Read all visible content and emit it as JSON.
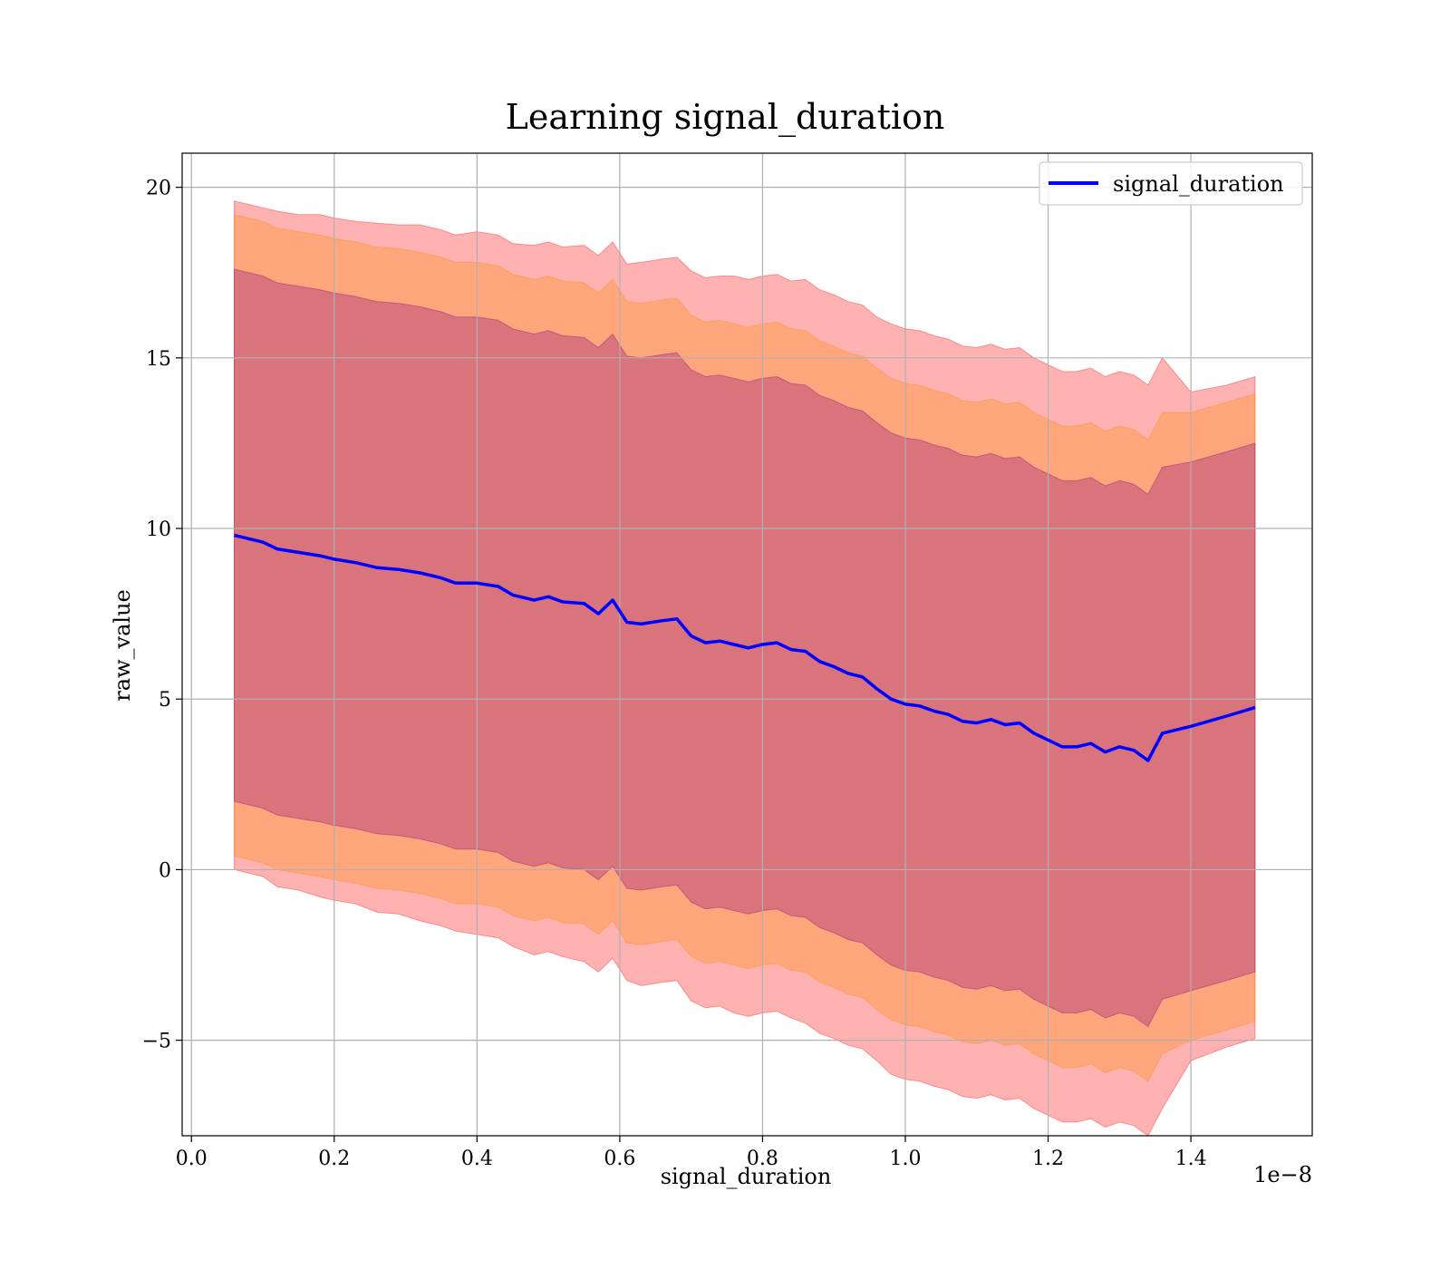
{
  "chart_data": {
    "type": "line",
    "title": "Learning signal_duration",
    "xlabel": "signal_duration",
    "ylabel": "raw_value",
    "x_offset_label": "1e−8",
    "xlim": [
      -0.013,
      1.57
    ],
    "ylim": [
      -7.8,
      21.0
    ],
    "x_ticks": [
      0.0,
      0.2,
      0.4,
      0.6,
      0.8,
      1.0,
      1.2,
      1.4
    ],
    "x_tick_labels": [
      "0.0",
      "0.2",
      "0.4",
      "0.6",
      "0.8",
      "1.0",
      "1.2",
      "1.4"
    ],
    "y_ticks": [
      -5,
      0,
      5,
      10,
      15,
      20
    ],
    "y_tick_labels": [
      "−5",
      "0",
      "5",
      "10",
      "15",
      "20"
    ],
    "grid": true,
    "legend_position": "top-right",
    "colors": {
      "line": "#0000ff",
      "band_outer": "#ff0000",
      "band_middle": "#ff8c00",
      "band_inner": "#800080",
      "grid": "#b0b0b0"
    },
    "series": [
      {
        "name": "signal_duration",
        "role": "line",
        "x": [
          0.06,
          0.08,
          0.1,
          0.12,
          0.15,
          0.18,
          0.2,
          0.23,
          0.26,
          0.29,
          0.32,
          0.35,
          0.37,
          0.4,
          0.43,
          0.45,
          0.48,
          0.5,
          0.52,
          0.55,
          0.57,
          0.59,
          0.61,
          0.63,
          0.66,
          0.68,
          0.7,
          0.72,
          0.74,
          0.76,
          0.78,
          0.8,
          0.82,
          0.84,
          0.86,
          0.88,
          0.9,
          0.92,
          0.94,
          0.96,
          0.98,
          1.0,
          1.02,
          1.04,
          1.06,
          1.08,
          1.1,
          1.12,
          1.14,
          1.16,
          1.18,
          1.2,
          1.22,
          1.24,
          1.26,
          1.28,
          1.3,
          1.32,
          1.34,
          1.36,
          1.4,
          1.45,
          1.49
        ],
        "y": [
          9.8,
          9.7,
          9.6,
          9.4,
          9.3,
          9.2,
          9.1,
          9.0,
          8.85,
          8.8,
          8.7,
          8.55,
          8.4,
          8.4,
          8.3,
          8.05,
          7.9,
          8.0,
          7.85,
          7.8,
          7.5,
          7.9,
          7.25,
          7.2,
          7.3,
          7.35,
          6.85,
          6.65,
          6.7,
          6.6,
          6.5,
          6.6,
          6.65,
          6.45,
          6.4,
          6.1,
          5.95,
          5.75,
          5.65,
          5.3,
          5.0,
          4.85,
          4.8,
          4.65,
          4.55,
          4.35,
          4.3,
          4.4,
          4.25,
          4.3,
          4.0,
          3.8,
          3.6,
          3.6,
          3.7,
          3.45,
          3.6,
          3.5,
          3.2,
          4.0,
          4.2,
          4.5,
          4.75
        ]
      },
      {
        "role": "band",
        "std_multiple": 3,
        "half_width": [
          9.8,
          9.8,
          9.8,
          9.9,
          9.9,
          10.0,
          10.0,
          10.0,
          10.1,
          10.1,
          10.2,
          10.2,
          10.2,
          10.3,
          10.3,
          10.3,
          10.4,
          10.4,
          10.4,
          10.5,
          10.5,
          10.5,
          10.5,
          10.6,
          10.6,
          10.6,
          10.7,
          10.7,
          10.7,
          10.8,
          10.8,
          10.8,
          10.8,
          10.8,
          10.9,
          10.9,
          10.9,
          10.9,
          10.9,
          10.9,
          11.0,
          11.0,
          11.0,
          11.0,
          11.0,
          11.0,
          11.0,
          11.0,
          11.0,
          11.0,
          11.0,
          11.0,
          11.0,
          11.0,
          11.0,
          11.0,
          11.0,
          11.0,
          11.0,
          11.0,
          9.8,
          9.7,
          9.7
        ]
      },
      {
        "role": "band",
        "std_multiple": 2,
        "half_width": [
          9.4,
          9.4,
          9.4,
          9.4,
          9.4,
          9.4,
          9.4,
          9.4,
          9.4,
          9.4,
          9.4,
          9.4,
          9.4,
          9.4,
          9.4,
          9.4,
          9.4,
          9.4,
          9.4,
          9.4,
          9.4,
          9.4,
          9.4,
          9.4,
          9.4,
          9.4,
          9.4,
          9.4,
          9.4,
          9.4,
          9.4,
          9.4,
          9.4,
          9.4,
          9.4,
          9.4,
          9.4,
          9.4,
          9.4,
          9.4,
          9.4,
          9.4,
          9.4,
          9.4,
          9.4,
          9.4,
          9.4,
          9.4,
          9.4,
          9.4,
          9.4,
          9.4,
          9.4,
          9.4,
          9.4,
          9.4,
          9.4,
          9.4,
          9.4,
          9.4,
          9.2,
          9.2,
          9.2
        ]
      },
      {
        "role": "band",
        "std_multiple": 1,
        "half_width": [
          7.8,
          7.8,
          7.8,
          7.8,
          7.8,
          7.8,
          7.8,
          7.8,
          7.8,
          7.8,
          7.8,
          7.8,
          7.8,
          7.8,
          7.8,
          7.8,
          7.8,
          7.8,
          7.8,
          7.8,
          7.8,
          7.8,
          7.8,
          7.8,
          7.8,
          7.8,
          7.8,
          7.8,
          7.8,
          7.8,
          7.8,
          7.8,
          7.8,
          7.8,
          7.8,
          7.8,
          7.8,
          7.8,
          7.8,
          7.8,
          7.8,
          7.8,
          7.8,
          7.8,
          7.8,
          7.8,
          7.8,
          7.8,
          7.8,
          7.8,
          7.8,
          7.8,
          7.8,
          7.8,
          7.8,
          7.8,
          7.8,
          7.8,
          7.8,
          7.8,
          7.75,
          7.75,
          7.75
        ]
      }
    ]
  }
}
